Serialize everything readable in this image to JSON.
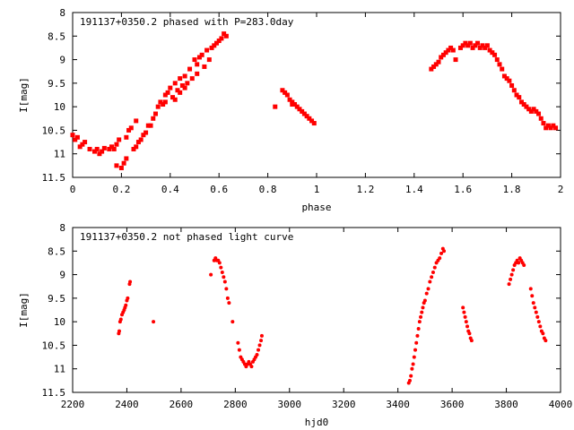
{
  "chart_data": [
    {
      "type": "scatter",
      "title": "191137+0350.2 phased with P=283.0day",
      "xlabel": "phase",
      "ylabel": "I[mag]",
      "xlim": [
        0,
        2
      ],
      "ylim": [
        11.5,
        8
      ],
      "y_inverted": true,
      "xticks": [
        0,
        0.2,
        0.4,
        0.6,
        0.8,
        1,
        1.2,
        1.4,
        1.6,
        1.8,
        2
      ],
      "xtick_labels": [
        "0",
        "0.2",
        "0.4",
        "0.6",
        "0.8",
        "1",
        "1.2",
        "1.4",
        "1.6",
        "1.8",
        "2"
      ],
      "yticks": [
        8,
        8.5,
        9,
        9.5,
        10,
        10.5,
        11,
        11.5
      ],
      "ytick_labels": [
        "8",
        "8.5",
        "9",
        "9.5",
        "10",
        "10.5",
        "11",
        "11.5"
      ],
      "grid": false,
      "marker_color": "#ff0000",
      "series": [
        {
          "points": [
            [
              0.0,
              10.6
            ],
            [
              0.01,
              10.7
            ],
            [
              0.02,
              10.65
            ],
            [
              0.03,
              10.85
            ],
            [
              0.04,
              10.8
            ],
            [
              0.05,
              10.75
            ],
            [
              0.07,
              10.9
            ],
            [
              0.09,
              10.95
            ],
            [
              0.1,
              10.9
            ],
            [
              0.11,
              11.0
            ],
            [
              0.12,
              10.95
            ],
            [
              0.13,
              10.88
            ],
            [
              0.15,
              10.9
            ],
            [
              0.16,
              10.85
            ],
            [
              0.17,
              10.9
            ],
            [
              0.18,
              10.8
            ],
            [
              0.18,
              11.25
            ],
            [
              0.19,
              10.7
            ],
            [
              0.2,
              11.3
            ],
            [
              0.21,
              11.2
            ],
            [
              0.22,
              11.1
            ],
            [
              0.22,
              10.65
            ],
            [
              0.23,
              10.5
            ],
            [
              0.24,
              10.45
            ],
            [
              0.25,
              10.9
            ],
            [
              0.26,
              10.3
            ],
            [
              0.26,
              10.85
            ],
            [
              0.27,
              10.75
            ],
            [
              0.28,
              10.7
            ],
            [
              0.29,
              10.6
            ],
            [
              0.3,
              10.55
            ],
            [
              0.31,
              10.4
            ],
            [
              0.32,
              10.4
            ],
            [
              0.33,
              10.25
            ],
            [
              0.34,
              10.15
            ],
            [
              0.35,
              10.0
            ],
            [
              0.36,
              9.9
            ],
            [
              0.37,
              9.95
            ],
            [
              0.38,
              9.75
            ],
            [
              0.38,
              9.9
            ],
            [
              0.39,
              9.7
            ],
            [
              0.4,
              9.6
            ],
            [
              0.41,
              9.8
            ],
            [
              0.42,
              9.85
            ],
            [
              0.42,
              9.5
            ],
            [
              0.43,
              9.65
            ],
            [
              0.44,
              9.4
            ],
            [
              0.44,
              9.7
            ],
            [
              0.45,
              9.55
            ],
            [
              0.46,
              9.35
            ],
            [
              0.46,
              9.6
            ],
            [
              0.47,
              9.5
            ],
            [
              0.48,
              9.2
            ],
            [
              0.49,
              9.4
            ],
            [
              0.5,
              9.0
            ],
            [
              0.51,
              9.1
            ],
            [
              0.51,
              9.3
            ],
            [
              0.52,
              8.95
            ],
            [
              0.53,
              8.9
            ],
            [
              0.54,
              9.15
            ],
            [
              0.55,
              8.8
            ],
            [
              0.56,
              9.0
            ],
            [
              0.57,
              8.75
            ],
            [
              0.58,
              8.7
            ],
            [
              0.59,
              8.65
            ],
            [
              0.6,
              8.6
            ],
            [
              0.61,
              8.55
            ],
            [
              0.62,
              8.45
            ],
            [
              0.63,
              8.5
            ],
            [
              0.83,
              10.0
            ],
            [
              0.86,
              9.65
            ],
            [
              0.87,
              9.7
            ],
            [
              0.88,
              9.75
            ],
            [
              0.89,
              9.85
            ],
            [
              0.9,
              9.9
            ],
            [
              0.9,
              9.95
            ],
            [
              0.91,
              9.95
            ],
            [
              0.92,
              10.0
            ],
            [
              0.93,
              10.05
            ],
            [
              0.94,
              10.1
            ],
            [
              0.95,
              10.15
            ],
            [
              0.96,
              10.2
            ],
            [
              0.97,
              10.25
            ],
            [
              0.98,
              10.3
            ],
            [
              0.99,
              10.35
            ],
            [
              1.47,
              9.2
            ],
            [
              1.48,
              9.15
            ],
            [
              1.49,
              9.1
            ],
            [
              1.5,
              9.05
            ],
            [
              1.51,
              8.95
            ],
            [
              1.52,
              8.9
            ],
            [
              1.53,
              8.85
            ],
            [
              1.54,
              8.8
            ],
            [
              1.55,
              8.75
            ],
            [
              1.56,
              8.8
            ],
            [
              1.57,
              9.0
            ],
            [
              1.59,
              8.75
            ],
            [
              1.6,
              8.7
            ],
            [
              1.61,
              8.65
            ],
            [
              1.62,
              8.7
            ],
            [
              1.63,
              8.65
            ],
            [
              1.64,
              8.75
            ],
            [
              1.65,
              8.7
            ],
            [
              1.66,
              8.65
            ],
            [
              1.67,
              8.75
            ],
            [
              1.68,
              8.7
            ],
            [
              1.69,
              8.75
            ],
            [
              1.7,
              8.7
            ],
            [
              1.71,
              8.8
            ],
            [
              1.72,
              8.85
            ],
            [
              1.73,
              8.9
            ],
            [
              1.74,
              9.0
            ],
            [
              1.75,
              9.1
            ],
            [
              1.76,
              9.2
            ],
            [
              1.77,
              9.35
            ],
            [
              1.78,
              9.4
            ],
            [
              1.79,
              9.45
            ],
            [
              1.8,
              9.55
            ],
            [
              1.81,
              9.65
            ],
            [
              1.82,
              9.75
            ],
            [
              1.83,
              9.8
            ],
            [
              1.84,
              9.9
            ],
            [
              1.85,
              9.95
            ],
            [
              1.86,
              10.0
            ],
            [
              1.87,
              10.05
            ],
            [
              1.88,
              10.1
            ],
            [
              1.89,
              10.05
            ],
            [
              1.9,
              10.1
            ],
            [
              1.91,
              10.15
            ],
            [
              1.92,
              10.25
            ],
            [
              1.93,
              10.35
            ],
            [
              1.94,
              10.45
            ],
            [
              1.95,
              10.4
            ],
            [
              1.96,
              10.45
            ],
            [
              1.97,
              10.4
            ],
            [
              1.98,
              10.45
            ]
          ]
        }
      ]
    },
    {
      "type": "scatter",
      "title": "191137+0350.2 not phased light curve",
      "xlabel": "hjd0",
      "ylabel": "I[mag]",
      "xlim": [
        2200,
        4000
      ],
      "ylim": [
        11.5,
        8
      ],
      "y_inverted": true,
      "xticks": [
        2200,
        2400,
        2600,
        2800,
        3000,
        3200,
        3400,
        3600,
        3800,
        4000
      ],
      "xtick_labels": [
        "2200",
        "2400",
        "2600",
        "2800",
        "3000",
        "3200",
        "3400",
        "3600",
        "3800",
        "4000"
      ],
      "yticks": [
        8,
        8.5,
        9,
        9.5,
        10,
        10.5,
        11,
        11.5
      ],
      "ytick_labels": [
        "8",
        "8.5",
        "9",
        "9.5",
        "10",
        "10.5",
        "11",
        "11.5"
      ],
      "grid": false,
      "marker_color": "#ff0000",
      "series": [
        {
          "points": [
            [
              2370,
              10.25
            ],
            [
              2372,
              10.2
            ],
            [
              2375,
              10.0
            ],
            [
              2378,
              9.95
            ],
            [
              2382,
              9.85
            ],
            [
              2386,
              9.8
            ],
            [
              2390,
              9.75
            ],
            [
              2393,
              9.7
            ],
            [
              2396,
              9.65
            ],
            [
              2400,
              9.55
            ],
            [
              2403,
              9.5
            ],
            [
              2410,
              9.2
            ],
            [
              2412,
              9.15
            ],
            [
              2498,
              10.0
            ],
            [
              2710,
              9.0
            ],
            [
              2722,
              8.7
            ],
            [
              2727,
              8.65
            ],
            [
              2732,
              8.7
            ],
            [
              2737,
              8.7
            ],
            [
              2742,
              8.75
            ],
            [
              2747,
              8.85
            ],
            [
              2752,
              8.95
            ],
            [
              2757,
              9.05
            ],
            [
              2762,
              9.15
            ],
            [
              2767,
              9.3
            ],
            [
              2772,
              9.5
            ],
            [
              2777,
              9.6
            ],
            [
              2790,
              10.0
            ],
            [
              2810,
              10.45
            ],
            [
              2815,
              10.6
            ],
            [
              2820,
              10.75
            ],
            [
              2825,
              10.8
            ],
            [
              2830,
              10.85
            ],
            [
              2835,
              10.9
            ],
            [
              2840,
              10.95
            ],
            [
              2845,
              10.9
            ],
            [
              2850,
              10.85
            ],
            [
              2855,
              10.9
            ],
            [
              2860,
              10.95
            ],
            [
              2865,
              10.85
            ],
            [
              2870,
              10.8
            ],
            [
              2875,
              10.75
            ],
            [
              2880,
              10.7
            ],
            [
              2885,
              10.6
            ],
            [
              2890,
              10.5
            ],
            [
              2895,
              10.4
            ],
            [
              2898,
              10.3
            ],
            [
              3440,
              11.3
            ],
            [
              3444,
              11.25
            ],
            [
              3448,
              11.15
            ],
            [
              3452,
              11.0
            ],
            [
              3456,
              10.9
            ],
            [
              3460,
              10.75
            ],
            [
              3464,
              10.6
            ],
            [
              3468,
              10.45
            ],
            [
              3472,
              10.3
            ],
            [
              3476,
              10.15
            ],
            [
              3480,
              10.0
            ],
            [
              3484,
              9.9
            ],
            [
              3488,
              9.8
            ],
            [
              3492,
              9.7
            ],
            [
              3496,
              9.6
            ],
            [
              3500,
              9.55
            ],
            [
              3506,
              9.4
            ],
            [
              3512,
              9.3
            ],
            [
              3518,
              9.15
            ],
            [
              3524,
              9.05
            ],
            [
              3530,
              8.95
            ],
            [
              3536,
              8.85
            ],
            [
              3542,
              8.75
            ],
            [
              3548,
              8.7
            ],
            [
              3554,
              8.65
            ],
            [
              3560,
              8.55
            ],
            [
              3566,
              8.45
            ],
            [
              3570,
              8.5
            ],
            [
              3640,
              9.7
            ],
            [
              3644,
              9.8
            ],
            [
              3648,
              9.9
            ],
            [
              3652,
              10.0
            ],
            [
              3656,
              10.1
            ],
            [
              3660,
              10.2
            ],
            [
              3664,
              10.25
            ],
            [
              3668,
              10.35
            ],
            [
              3672,
              10.4
            ],
            [
              3810,
              9.2
            ],
            [
              3815,
              9.1
            ],
            [
              3820,
              9.0
            ],
            [
              3825,
              8.9
            ],
            [
              3830,
              8.8
            ],
            [
              3835,
              8.75
            ],
            [
              3840,
              8.7
            ],
            [
              3845,
              8.75
            ],
            [
              3850,
              8.65
            ],
            [
              3855,
              8.7
            ],
            [
              3860,
              8.75
            ],
            [
              3865,
              8.8
            ],
            [
              3890,
              9.3
            ],
            [
              3895,
              9.45
            ],
            [
              3900,
              9.6
            ],
            [
              3905,
              9.7
            ],
            [
              3910,
              9.8
            ],
            [
              3915,
              9.9
            ],
            [
              3920,
              10.0
            ],
            [
              3925,
              10.1
            ],
            [
              3930,
              10.2
            ],
            [
              3935,
              10.25
            ],
            [
              3940,
              10.35
            ],
            [
              3945,
              10.4
            ]
          ]
        }
      ]
    }
  ]
}
